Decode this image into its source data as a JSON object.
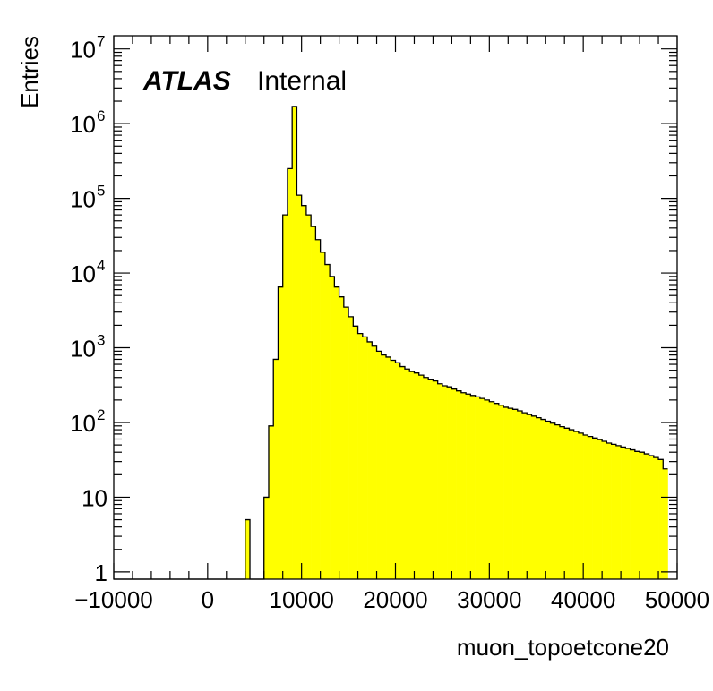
{
  "chart_data": {
    "type": "bar",
    "style": "histogram-step",
    "fill_color": "#ffff00",
    "line_color": "#000000",
    "xlabel": "muon_topoetcone20",
    "ylabel": "Entries",
    "label_bold": "ATLAS",
    "label_plain": "Internal",
    "x_range": [
      -10000,
      50000
    ],
    "y_range": [
      0.8,
      15000000
    ],
    "y_scale": "log",
    "bin_width": 500,
    "first_bin_low": -10000,
    "x_ticks": [
      {
        "value": -10000,
        "label": "−10000"
      },
      {
        "value": 0,
        "label": "0"
      },
      {
        "value": 10000,
        "label": "10000"
      },
      {
        "value": 20000,
        "label": "20000"
      },
      {
        "value": 30000,
        "label": "30000"
      },
      {
        "value": 40000,
        "label": "40000"
      },
      {
        "value": 50000,
        "label": "50000"
      }
    ],
    "y_ticks": [
      {
        "value": 1,
        "base": "1",
        "exp": ""
      },
      {
        "value": 10,
        "base": "10",
        "exp": ""
      },
      {
        "value": 100,
        "base": "10",
        "exp": "2"
      },
      {
        "value": 1000,
        "base": "10",
        "exp": "3"
      },
      {
        "value": 10000,
        "base": "10",
        "exp": "4"
      },
      {
        "value": 100000,
        "base": "10",
        "exp": "5"
      },
      {
        "value": 1000000,
        "base": "10",
        "exp": "6"
      },
      {
        "value": 10000000,
        "base": "10",
        "exp": "7"
      }
    ],
    "values": [
      0,
      0,
      0,
      0,
      0,
      0,
      0,
      0,
      0,
      0,
      0,
      0,
      0,
      0,
      0,
      0,
      0,
      0,
      0,
      0,
      0,
      0,
      0,
      0,
      0,
      0,
      0,
      0,
      5,
      0,
      0,
      0,
      10,
      90,
      700,
      6500,
      60000,
      250000,
      1700000,
      110000,
      80000,
      60000,
      42000,
      28000,
      19000,
      13000,
      9000,
      6500,
      4800,
      3500,
      2600,
      1950,
      1550,
      1400,
      1200,
      1050,
      900,
      800,
      750,
      680,
      630,
      560,
      520,
      480,
      460,
      430,
      400,
      380,
      360,
      330,
      310,
      300,
      280,
      265,
      250,
      240,
      230,
      220,
      210,
      200,
      190,
      180,
      170,
      160,
      155,
      150,
      143,
      135,
      128,
      122,
      116,
      110,
      104,
      98,
      93,
      88,
      84,
      80,
      76,
      72,
      68,
      65,
      62,
      59,
      56,
      53,
      51,
      49,
      47,
      45,
      43,
      41,
      40,
      38,
      36,
      34,
      32,
      24
    ]
  }
}
